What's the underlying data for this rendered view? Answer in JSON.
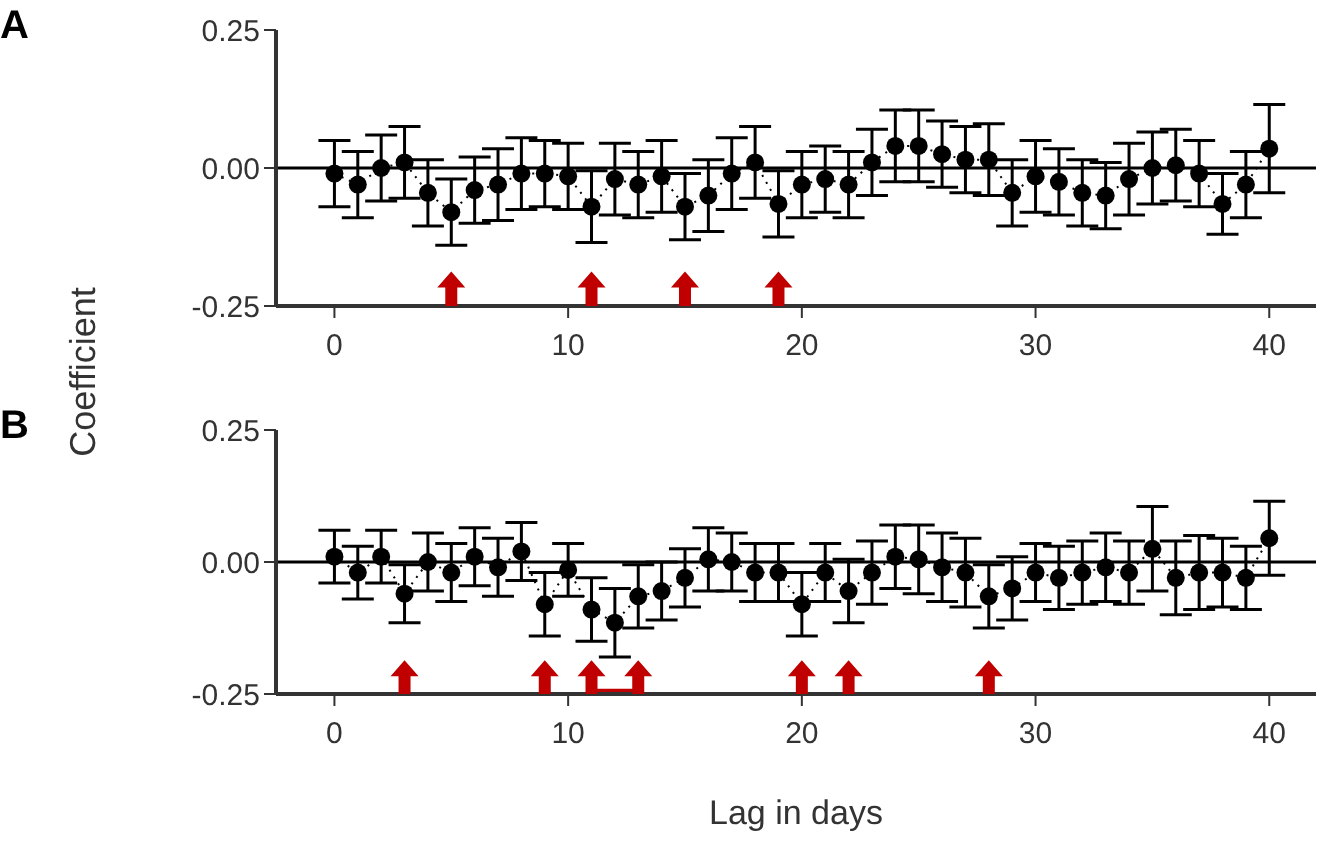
{
  "chart_data": [
    {
      "type": "line",
      "title": "A",
      "ylabel": "Coefficient",
      "x": [
        0,
        1,
        2,
        3,
        4,
        5,
        6,
        7,
        8,
        9,
        10,
        11,
        12,
        13,
        14,
        15,
        16,
        17,
        18,
        19,
        20,
        21,
        22,
        23,
        24,
        25,
        26,
        27,
        28,
        29,
        30,
        31,
        32,
        33,
        34,
        35,
        36,
        37,
        38,
        39,
        40
      ],
      "xlim": [
        -2.5,
        42
      ],
      "xticks": [
        0,
        10,
        20,
        30,
        40
      ],
      "ylim": [
        -0.25,
        0.25
      ],
      "yticks": [
        {
          "value": -0.25,
          "label": "-0.25"
        },
        {
          "value": 0,
          "label": "0.00"
        },
        {
          "value": 0.25,
          "label": "0.25"
        }
      ],
      "grid": false,
      "marker": "circle",
      "line_style": "dotted",
      "ref_lines": [
        {
          "axis": "y",
          "value": 0,
          "color": "#000000"
        }
      ],
      "series": [
        {
          "color": "#000000",
          "values": [
            -0.01,
            -0.03,
            0.0,
            0.01,
            -0.045,
            -0.08,
            -0.04,
            -0.03,
            -0.01,
            -0.01,
            -0.015,
            -0.07,
            -0.02,
            -0.03,
            -0.015,
            -0.07,
            -0.05,
            -0.01,
            0.01,
            -0.065,
            -0.03,
            -0.02,
            -0.03,
            0.01,
            0.04,
            0.04,
            0.025,
            0.015,
            0.015,
            -0.045,
            -0.015,
            -0.025,
            -0.045,
            -0.05,
            -0.02,
            0.0,
            0.005,
            -0.01,
            -0.065,
            -0.03,
            0.035
          ],
          "errors": [
            0.06,
            0.06,
            0.06,
            0.065,
            0.06,
            0.06,
            0.06,
            0.065,
            0.065,
            0.06,
            0.06,
            0.065,
            0.065,
            0.06,
            0.065,
            0.06,
            0.065,
            0.065,
            0.065,
            0.06,
            0.06,
            0.06,
            0.06,
            0.06,
            0.065,
            0.065,
            0.06,
            0.06,
            0.065,
            0.06,
            0.065,
            0.06,
            0.06,
            0.06,
            0.065,
            0.065,
            0.065,
            0.06,
            0.055,
            0.06,
            0.08
          ]
        },
        {
          "type": "scatter",
          "marker": "triangle",
          "color": "#c00000",
          "x": [
            5,
            11,
            15,
            19
          ],
          "values": [
            -0.22,
            -0.22,
            -0.22,
            -0.22
          ]
        }
      ]
    },
    {
      "type": "line",
      "title": "B",
      "xlabel": "Lag in days",
      "x": [
        0,
        1,
        2,
        3,
        4,
        5,
        6,
        7,
        8,
        9,
        10,
        11,
        12,
        13,
        14,
        15,
        16,
        17,
        18,
        19,
        20,
        21,
        22,
        23,
        24,
        25,
        26,
        27,
        28,
        29,
        30,
        31,
        32,
        33,
        34,
        35,
        36,
        37,
        38,
        39,
        40
      ],
      "xlim": [
        -2.5,
        42
      ],
      "xticks": [
        0,
        10,
        20,
        30,
        40
      ],
      "ylim": [
        -0.25,
        0.25
      ],
      "yticks": [
        {
          "value": -0.25,
          "label": "-0.25"
        },
        {
          "value": 0,
          "label": "0.00"
        },
        {
          "value": 0.25,
          "label": "0.25"
        }
      ],
      "grid": false,
      "marker": "circle",
      "line_style": "dotted",
      "ref_lines": [
        {
          "axis": "y",
          "value": 0,
          "color": "#000000"
        }
      ],
      "series": [
        {
          "color": "#000000",
          "values": [
            0.01,
            -0.02,
            0.01,
            -0.06,
            0.0,
            -0.02,
            0.01,
            -0.01,
            0.02,
            -0.08,
            -0.015,
            -0.09,
            -0.115,
            -0.065,
            -0.055,
            -0.03,
            0.005,
            0.0,
            -0.02,
            -0.02,
            -0.08,
            -0.02,
            -0.055,
            -0.02,
            0.01,
            0.005,
            -0.01,
            -0.02,
            -0.065,
            -0.05,
            -0.02,
            -0.03,
            -0.02,
            -0.01,
            -0.02,
            0.025,
            -0.03,
            -0.02,
            -0.02,
            -0.03,
            0.045
          ],
          "errors": [
            0.05,
            0.05,
            0.05,
            0.055,
            0.055,
            0.055,
            0.055,
            0.055,
            0.055,
            0.06,
            0.05,
            0.06,
            0.065,
            0.06,
            0.055,
            0.055,
            0.06,
            0.055,
            0.055,
            0.055,
            0.06,
            0.055,
            0.06,
            0.06,
            0.06,
            0.065,
            0.065,
            0.065,
            0.06,
            0.06,
            0.055,
            0.06,
            0.06,
            0.065,
            0.06,
            0.08,
            0.07,
            0.07,
            0.065,
            0.06,
            0.07
          ]
        },
        {
          "type": "scatter",
          "marker": "triangle",
          "color": "#c00000",
          "x": [
            3,
            9,
            11,
            13,
            20,
            22,
            28
          ],
          "values": [
            -0.22,
            -0.22,
            -0.22,
            -0.22,
            -0.22,
            -0.22,
            -0.22
          ]
        },
        {
          "type": "line",
          "marker": "none",
          "line_style": "solid",
          "color": "#c00000",
          "x": [
            11,
            13
          ],
          "values": [
            -0.245,
            -0.245
          ]
        }
      ]
    }
  ]
}
